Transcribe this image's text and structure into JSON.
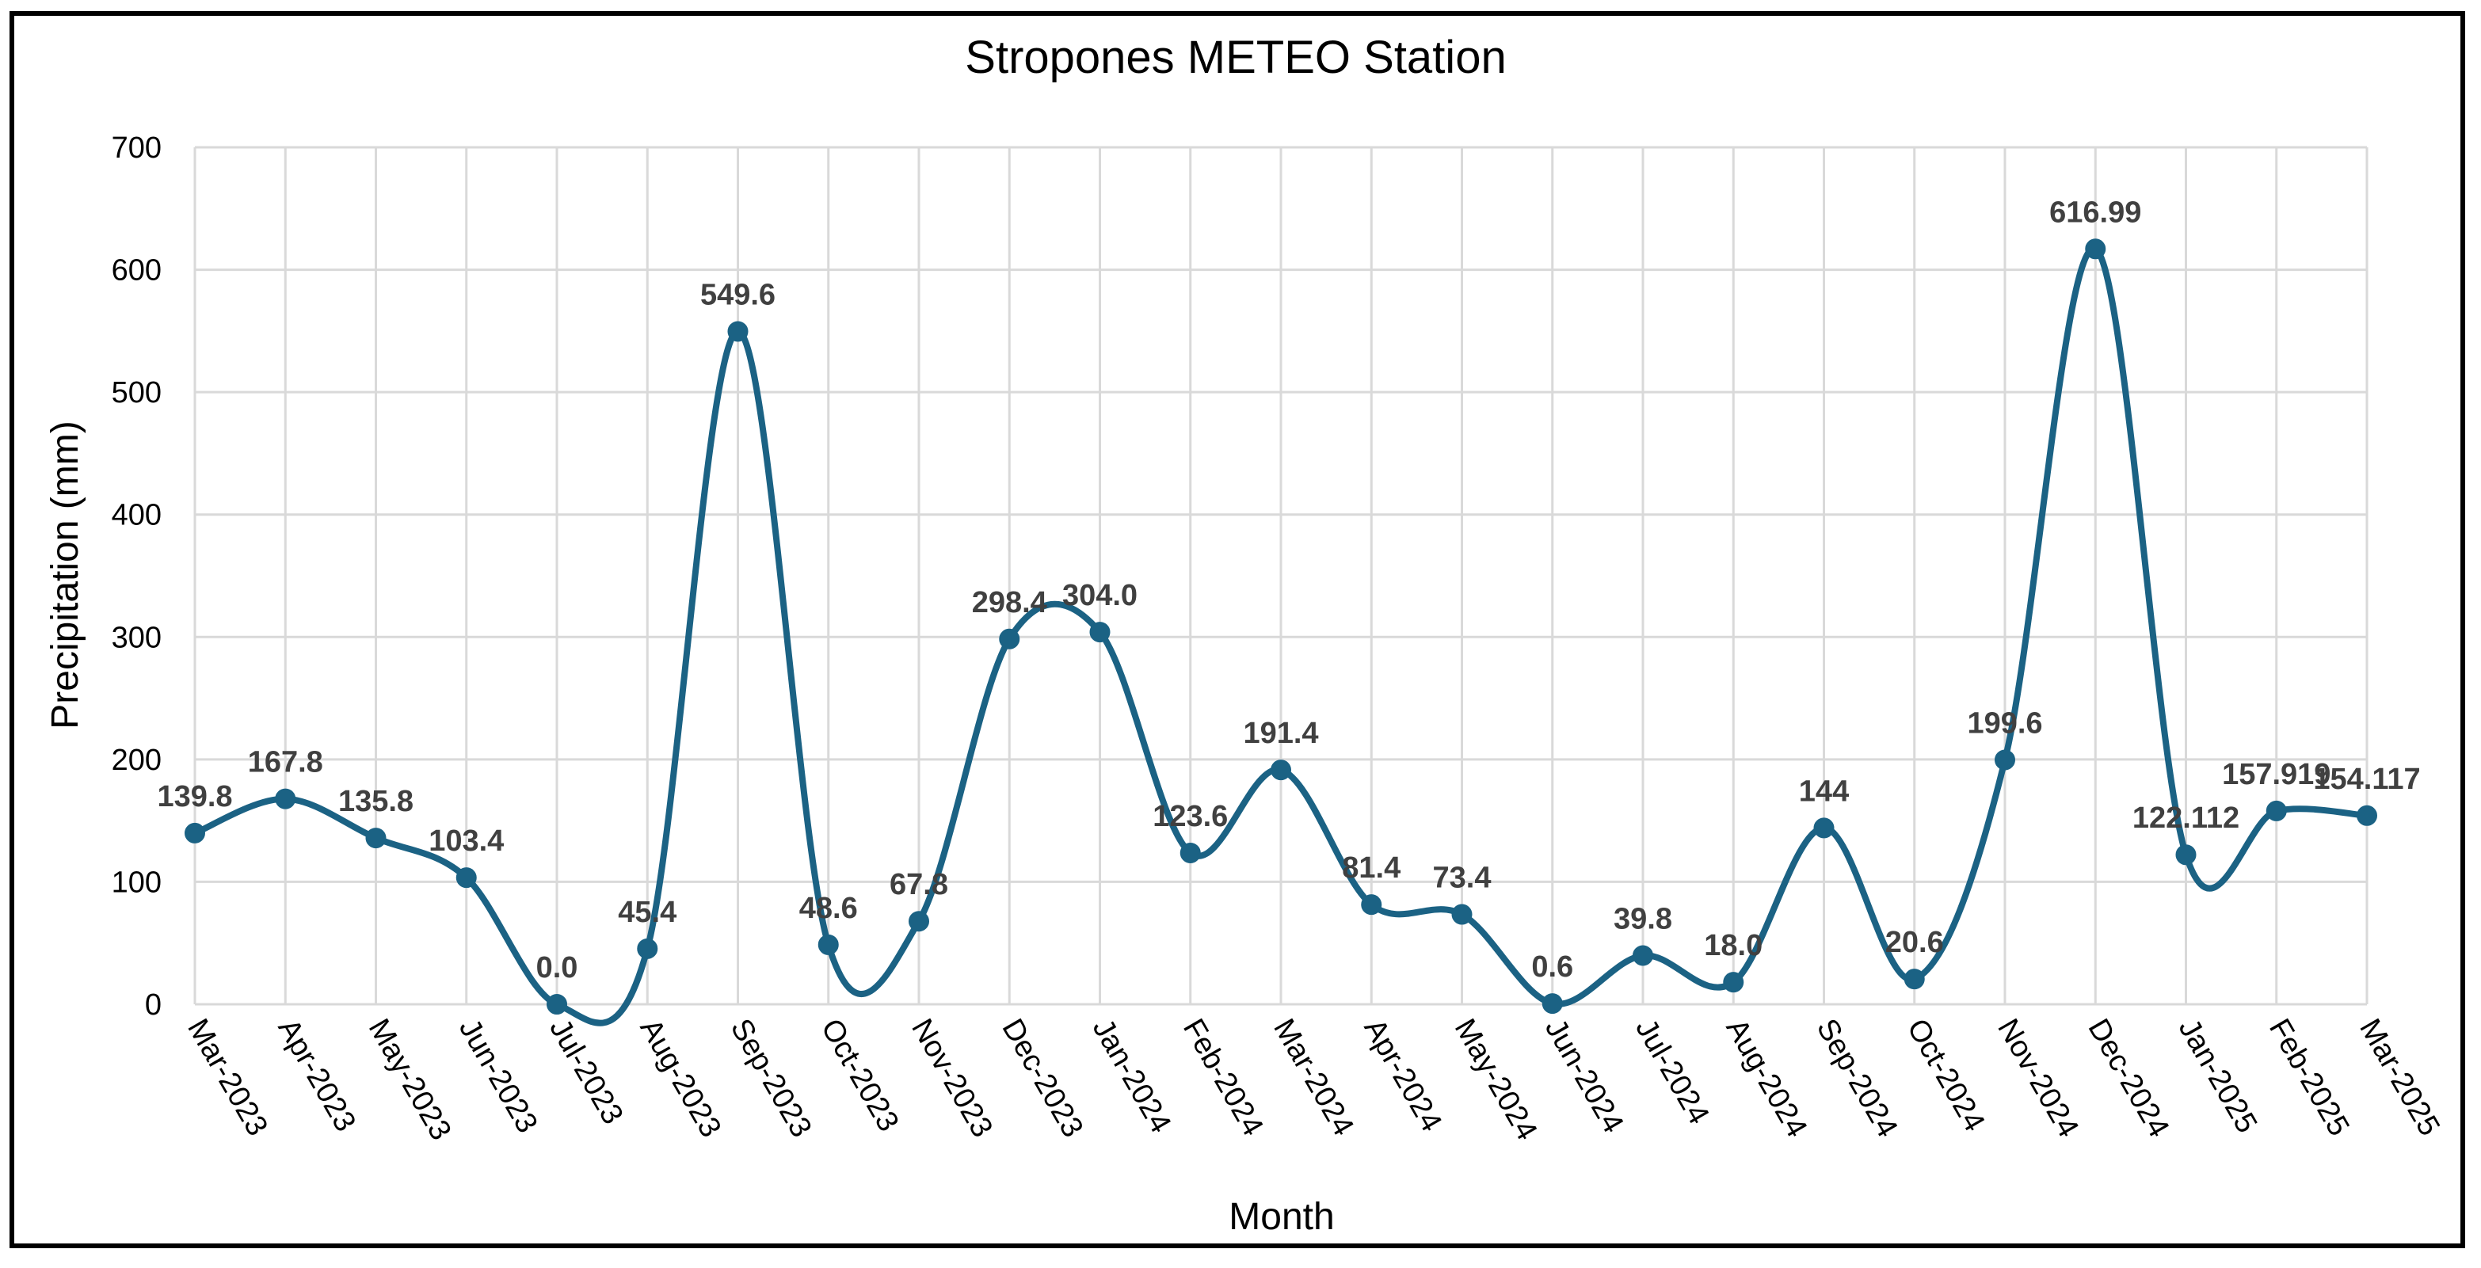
{
  "chart_data": {
    "type": "line",
    "title": "Stropones METEO Station",
    "xlabel": "Month",
    "ylabel": "Precipitation (mm)",
    "ylim": [
      0,
      700
    ],
    "yticks": [
      0,
      100,
      200,
      300,
      400,
      500,
      600,
      700
    ],
    "grid": true,
    "smooth": true,
    "line_color": "#1B6284",
    "categories": [
      "Mar-2023",
      "Apr-2023",
      "May-2023",
      "Jun-2023",
      "Jul-2023",
      "Aug-2023",
      "Sep-2023",
      "Oct-2023",
      "Nov-2023",
      "Dec-2023",
      "Jan-2024",
      "Feb-2024",
      "Mar-2024",
      "Apr-2024",
      "May-2024",
      "Jun-2024",
      "Jul-2024",
      "Aug-2024",
      "Sep-2024",
      "Oct-2024",
      "Nov-2024",
      "Dec-2024",
      "Jan-2025",
      "Feb-2025",
      "Mar-2025"
    ],
    "values": [
      139.8,
      167.8,
      135.8,
      103.4,
      0.0,
      45.4,
      549.6,
      48.6,
      67.8,
      298.4,
      304.0,
      123.6,
      191.4,
      81.4,
      73.4,
      0.6,
      39.8,
      18.0,
      144,
      20.6,
      199.6,
      616.99,
      122.112,
      157.919,
      154.117
    ],
    "data_labels": [
      "139.8",
      "167.8",
      "135.8",
      "103.4",
      "0.0",
      "45.4",
      "549.6",
      "48.6",
      "67.8",
      "298.4",
      "304.0",
      "123.6",
      "191.4",
      "81.4",
      "73.4",
      "0.6",
      "39.8",
      "18.0",
      "144",
      "20.6",
      "199.6",
      "616.99",
      "122.112",
      "157.919",
      "154.117"
    ]
  }
}
